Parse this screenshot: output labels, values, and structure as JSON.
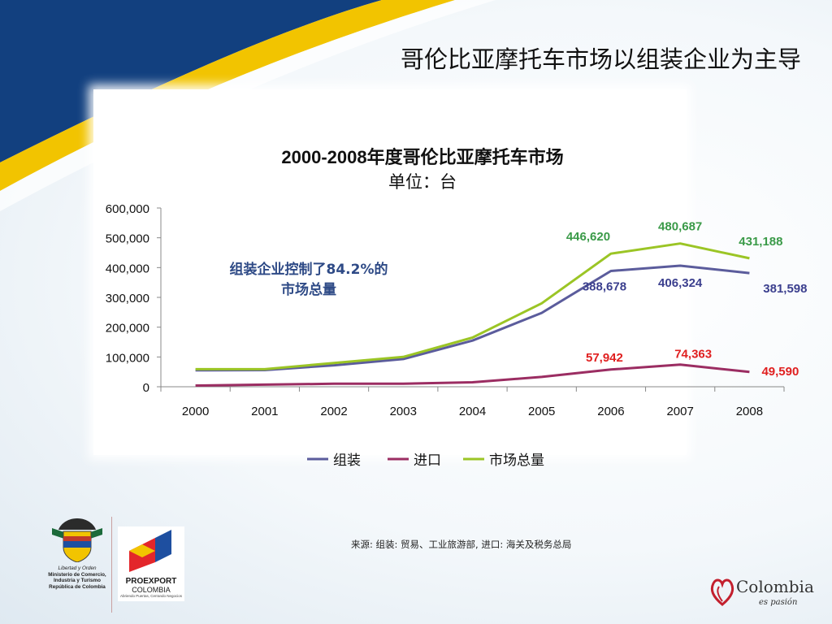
{
  "slide": {
    "title": "哥伦比亚摩托车市场以组装企业为主导",
    "source": "来源: 组装: 贸易、工业旅游部, 进口: 海关及税务总局"
  },
  "logos": {
    "gov_lines": [
      "Libertad y Orden",
      "Ministerio de Comercio,",
      "Industria y Turismo",
      "República de Colombia"
    ],
    "proexport_name": "PROEXPORT",
    "proexport_country": "COLOMBIA",
    "proexport_tagline": "Abriendo Puertas, Cerrando Negocios",
    "colombia_brand": "Colombia",
    "colombia_tagline": "es pasión"
  },
  "colors": {
    "assembly": "#5b5c9c",
    "import": "#9b2d62",
    "total": "#9bc525",
    "label_total": "#3a9a48",
    "label_assembly": "#3b3f8e",
    "label_import": "#e02020",
    "annotation": "#2e4a86"
  },
  "chart_data": {
    "type": "line",
    "title": "2000-2008年度哥伦比亚摩托车市场",
    "subtitle": "单位：台",
    "categories": [
      "2000",
      "2001",
      "2002",
      "2003",
      "2004",
      "2005",
      "2006",
      "2007",
      "2008"
    ],
    "ylim": [
      0,
      600000
    ],
    "yticks": [
      "600,000",
      "500,000",
      "400,000",
      "300,000",
      "200,000",
      "100,000",
      "0"
    ],
    "grid": false,
    "legend_position": "bottom",
    "annotation": [
      "组装企业控制了84.2%的",
      "市场总量"
    ],
    "series": [
      {
        "name": "组装",
        "color_key": "assembly",
        "values": [
          55000,
          56000,
          72000,
          93000,
          155000,
          248000,
          388678,
          406324,
          381598
        ]
      },
      {
        "name": "进口",
        "color_key": "import",
        "values": [
          4000,
          7000,
          10000,
          10000,
          15000,
          33000,
          57942,
          74363,
          49590
        ]
      },
      {
        "name": "市场总量",
        "color_key": "total",
        "values": [
          59000,
          59000,
          80000,
          100000,
          165000,
          280000,
          446620,
          480687,
          431188
        ]
      }
    ],
    "data_labels": [
      {
        "text": "446,620",
        "series": 2,
        "index": 6,
        "color_key": "label_total"
      },
      {
        "text": "480,687",
        "series": 2,
        "index": 7,
        "color_key": "label_total"
      },
      {
        "text": "431,188",
        "series": 2,
        "index": 8,
        "color_key": "label_total"
      },
      {
        "text": "388,678",
        "series": 0,
        "index": 6,
        "color_key": "label_assembly"
      },
      {
        "text": "406,324",
        "series": 0,
        "index": 7,
        "color_key": "label_assembly"
      },
      {
        "text": "381,598",
        "series": 0,
        "index": 8,
        "color_key": "label_assembly"
      },
      {
        "text": "57,942",
        "series": 1,
        "index": 6,
        "color_key": "label_import"
      },
      {
        "text": "74,363",
        "series": 1,
        "index": 7,
        "color_key": "label_import"
      },
      {
        "text": "49,590",
        "series": 1,
        "index": 8,
        "color_key": "label_import"
      }
    ]
  }
}
